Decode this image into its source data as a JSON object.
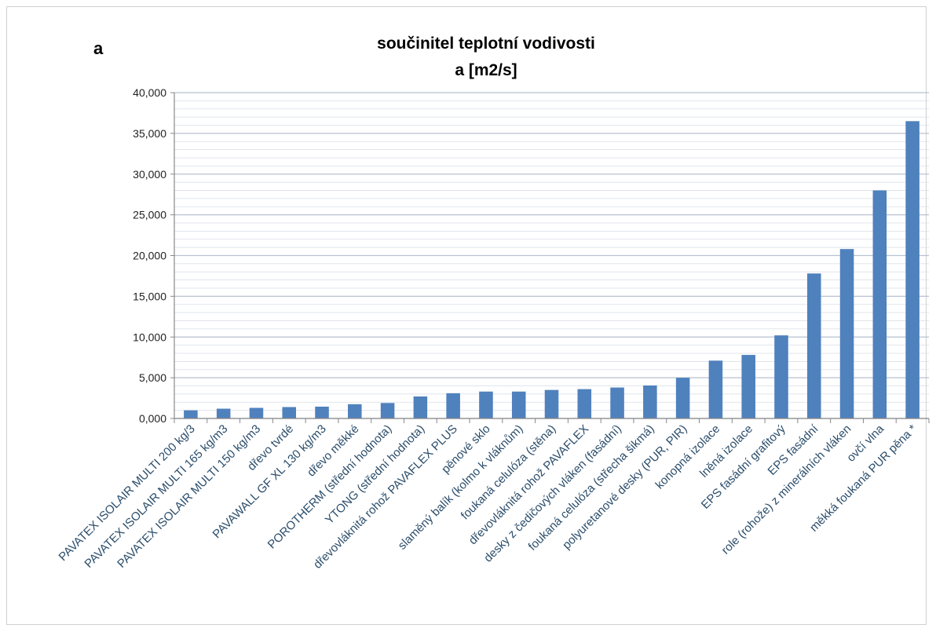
{
  "panel_label": "a",
  "chart_data": {
    "type": "bar",
    "title": "součinitel teplotní vodivosti",
    "subtitle": "a  [m2/s]",
    "xlabel": "",
    "ylabel": "",
    "ylim": [
      0,
      40
    ],
    "yticks": [
      "0,000",
      "5,000",
      "10,000",
      "15,000",
      "20,000",
      "25,000",
      "30,000",
      "35,000",
      "40,000"
    ],
    "grid": true,
    "bar_color": "#4f81bd",
    "categories": [
      "PAVATEX ISOLAIR MULTI 200 kg/3",
      "PAVATEX ISOLAIR MULTI 165 kg/m3",
      "PAVATEX ISOLAIR MULTI 150 kg/m3",
      "dřevo tvrdé",
      "PAVAWALL GF XL 130 kg/m3",
      "dřevo měkké",
      "POROTHERM (střední hodnota)",
      "YTONG (střední hodnota)",
      "dřevovláknitá rohož PAVAFLEX PLUS",
      "pěnové sklo",
      "slaměný balík (kolmo k vláknům)",
      "foukaná celulóza (stěna)",
      "dřevovláknitá rohož PAVAFLEX",
      "desky z čedičových vláken (fasádní)",
      "foukaná celulóza (střecha šikmá)",
      "polyuretanové desky (PUR, PIR)",
      "konopná izolace",
      "lněná izolace",
      "EPS fasádní grafitový",
      "EPS fasádní",
      "role (rohože) z minerálních vláken",
      "ovčí vlna",
      "měkká foukaná PUR pěna *"
    ],
    "values": [
      1.0,
      1.2,
      1.3,
      1.4,
      1.45,
      1.75,
      1.9,
      2.7,
      3.1,
      3.3,
      3.3,
      3.5,
      3.6,
      3.8,
      4.05,
      5.0,
      7.1,
      7.8,
      10.2,
      17.8,
      20.8,
      28.0,
      36.5
    ]
  }
}
